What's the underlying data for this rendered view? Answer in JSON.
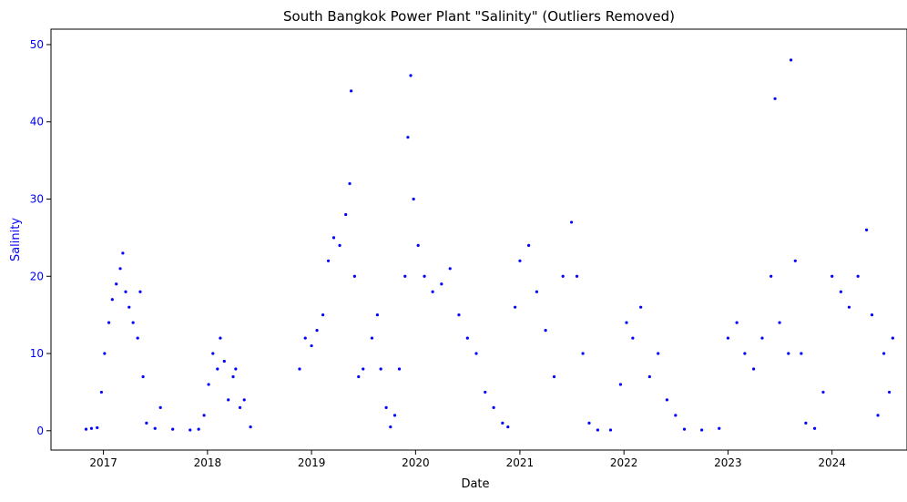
{
  "chart_data": {
    "type": "scatter",
    "title": "South Bangkok Power Plant \"Salinity\" (Outliers Removed)",
    "xlabel": "Date",
    "ylabel": "Salinity",
    "x_ticks": [
      "2017",
      "2018",
      "2019",
      "2020",
      "2021",
      "2022",
      "2023",
      "2024"
    ],
    "y_ticks": [
      0,
      10,
      20,
      30,
      40,
      50
    ],
    "xlim": [
      "2016-07-01",
      "2024-09-20"
    ],
    "ylim": [
      -2.5,
      52
    ],
    "grid": false,
    "legend": "none",
    "marker_color": "#0000ff",
    "y_axis_color": "#0000ff",
    "series": [
      {
        "values": [
          {
            "x": "2016-11-01",
            "y": 0.2
          },
          {
            "x": "2016-11-20",
            "y": 0.3
          },
          {
            "x": "2016-12-10",
            "y": 0.4
          },
          {
            "x": "2016-12-25",
            "y": 5
          },
          {
            "x": "2017-01-05",
            "y": 10
          },
          {
            "x": "2017-01-20",
            "y": 14
          },
          {
            "x": "2017-02-01",
            "y": 17
          },
          {
            "x": "2017-02-15",
            "y": 19
          },
          {
            "x": "2017-03-01",
            "y": 21
          },
          {
            "x": "2017-03-10",
            "y": 23
          },
          {
            "x": "2017-03-20",
            "y": 18
          },
          {
            "x": "2017-04-01",
            "y": 16
          },
          {
            "x": "2017-04-15",
            "y": 14
          },
          {
            "x": "2017-05-01",
            "y": 12
          },
          {
            "x": "2017-05-10",
            "y": 18
          },
          {
            "x": "2017-05-20",
            "y": 7
          },
          {
            "x": "2017-06-01",
            "y": 1
          },
          {
            "x": "2017-07-01",
            "y": 0.3
          },
          {
            "x": "2017-07-20",
            "y": 3
          },
          {
            "x": "2017-09-01",
            "y": 0.2
          },
          {
            "x": "2017-11-01",
            "y": 0.1
          },
          {
            "x": "2017-12-01",
            "y": 0.2
          },
          {
            "x": "2017-12-20",
            "y": 2
          },
          {
            "x": "2018-01-05",
            "y": 6
          },
          {
            "x": "2018-01-20",
            "y": 10
          },
          {
            "x": "2018-02-05",
            "y": 8
          },
          {
            "x": "2018-02-15",
            "y": 12
          },
          {
            "x": "2018-03-01",
            "y": 9
          },
          {
            "x": "2018-03-15",
            "y": 4
          },
          {
            "x": "2018-04-01",
            "y": 7
          },
          {
            "x": "2018-04-10",
            "y": 8
          },
          {
            "x": "2018-04-25",
            "y": 3
          },
          {
            "x": "2018-05-10",
            "y": 4
          },
          {
            "x": "2018-06-01",
            "y": 0.5
          },
          {
            "x": "2018-11-20",
            "y": 8
          },
          {
            "x": "2018-12-10",
            "y": 12
          },
          {
            "x": "2019-01-01",
            "y": 11
          },
          {
            "x": "2019-01-20",
            "y": 13
          },
          {
            "x": "2019-02-10",
            "y": 15
          },
          {
            "x": "2019-03-01",
            "y": 22
          },
          {
            "x": "2019-03-20",
            "y": 25
          },
          {
            "x": "2019-04-10",
            "y": 24
          },
          {
            "x": "2019-05-01",
            "y": 28
          },
          {
            "x": "2019-05-15",
            "y": 32
          },
          {
            "x": "2019-05-20",
            "y": 44
          },
          {
            "x": "2019-06-01",
            "y": 20
          },
          {
            "x": "2019-06-15",
            "y": 7
          },
          {
            "x": "2019-07-01",
            "y": 8
          },
          {
            "x": "2019-08-01",
            "y": 12
          },
          {
            "x": "2019-08-20",
            "y": 15
          },
          {
            "x": "2019-09-01",
            "y": 8
          },
          {
            "x": "2019-09-20",
            "y": 3
          },
          {
            "x": "2019-10-05",
            "y": 0.5
          },
          {
            "x": "2019-10-20",
            "y": 2
          },
          {
            "x": "2019-11-05",
            "y": 8
          },
          {
            "x": "2019-11-25",
            "y": 20
          },
          {
            "x": "2019-12-05",
            "y": 38
          },
          {
            "x": "2019-12-15",
            "y": 46
          },
          {
            "x": "2019-12-25",
            "y": 30
          },
          {
            "x": "2020-01-10",
            "y": 24
          },
          {
            "x": "2020-02-01",
            "y": 20
          },
          {
            "x": "2020-03-01",
            "y": 18
          },
          {
            "x": "2020-04-01",
            "y": 19
          },
          {
            "x": "2020-05-01",
            "y": 21
          },
          {
            "x": "2020-06-01",
            "y": 15
          },
          {
            "x": "2020-07-01",
            "y": 12
          },
          {
            "x": "2020-08-01",
            "y": 10
          },
          {
            "x": "2020-09-01",
            "y": 5
          },
          {
            "x": "2020-10-01",
            "y": 3
          },
          {
            "x": "2020-11-01",
            "y": 1
          },
          {
            "x": "2020-11-20",
            "y": 0.5
          },
          {
            "x": "2020-12-15",
            "y": 16
          },
          {
            "x": "2021-01-01",
            "y": 22
          },
          {
            "x": "2021-02-01",
            "y": 24
          },
          {
            "x": "2021-03-01",
            "y": 18
          },
          {
            "x": "2021-04-01",
            "y": 13
          },
          {
            "x": "2021-05-01",
            "y": 7
          },
          {
            "x": "2021-06-01",
            "y": 20
          },
          {
            "x": "2021-07-01",
            "y": 27
          },
          {
            "x": "2021-07-20",
            "y": 20
          },
          {
            "x": "2021-08-10",
            "y": 10
          },
          {
            "x": "2021-09-01",
            "y": 1
          },
          {
            "x": "2021-10-01",
            "y": 0.1
          },
          {
            "x": "2021-11-15",
            "y": 0.1
          },
          {
            "x": "2021-12-20",
            "y": 6
          },
          {
            "x": "2022-01-10",
            "y": 14
          },
          {
            "x": "2022-02-01",
            "y": 12
          },
          {
            "x": "2022-03-01",
            "y": 16
          },
          {
            "x": "2022-04-01",
            "y": 7
          },
          {
            "x": "2022-05-01",
            "y": 10
          },
          {
            "x": "2022-06-01",
            "y": 4
          },
          {
            "x": "2022-07-01",
            "y": 2
          },
          {
            "x": "2022-08-01",
            "y": 0.2
          },
          {
            "x": "2022-10-01",
            "y": 0.1
          },
          {
            "x": "2022-12-01",
            "y": 0.3
          },
          {
            "x": "2023-01-01",
            "y": 12
          },
          {
            "x": "2023-02-01",
            "y": 14
          },
          {
            "x": "2023-03-01",
            "y": 10
          },
          {
            "x": "2023-04-01",
            "y": 8
          },
          {
            "x": "2023-05-01",
            "y": 12
          },
          {
            "x": "2023-06-01",
            "y": 20
          },
          {
            "x": "2023-06-15",
            "y": 43
          },
          {
            "x": "2023-07-01",
            "y": 14
          },
          {
            "x": "2023-08-01",
            "y": 10
          },
          {
            "x": "2023-08-10",
            "y": 48
          },
          {
            "x": "2023-08-25",
            "y": 22
          },
          {
            "x": "2023-09-15",
            "y": 10
          },
          {
            "x": "2023-10-01",
            "y": 1
          },
          {
            "x": "2023-11-01",
            "y": 0.3
          },
          {
            "x": "2023-12-01",
            "y": 5
          },
          {
            "x": "2024-01-01",
            "y": 20
          },
          {
            "x": "2024-02-01",
            "y": 18
          },
          {
            "x": "2024-03-01",
            "y": 16
          },
          {
            "x": "2024-04-01",
            "y": 20
          },
          {
            "x": "2024-05-01",
            "y": 26
          },
          {
            "x": "2024-05-20",
            "y": 15
          },
          {
            "x": "2024-06-10",
            "y": 2
          },
          {
            "x": "2024-07-01",
            "y": 10
          },
          {
            "x": "2024-07-20",
            "y": 5
          },
          {
            "x": "2024-08-01",
            "y": 12
          }
        ]
      }
    ]
  }
}
